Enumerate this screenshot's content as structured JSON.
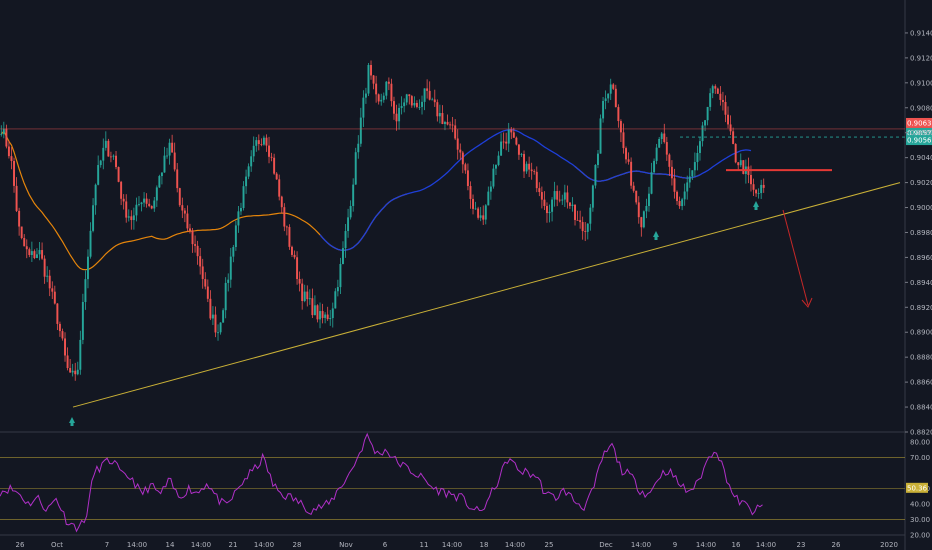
{
  "chart_data": [
    {
      "type": "candlestick",
      "ylim": [
        0.882,
        0.916
      ],
      "y_ticks": [
        "0.91400",
        "0.91200",
        "0.91000",
        "0.90800",
        "0.90600",
        "0.90400",
        "0.90200",
        "0.90000",
        "0.89800",
        "0.89600",
        "0.89400",
        "0.89200",
        "0.89000",
        "0.88800",
        "0.88600",
        "0.88400",
        "0.88200"
      ],
      "x_ticks": [
        "26",
        "Oct",
        "7",
        "14:00",
        "14",
        "14:00",
        "21",
        "14:00",
        "28",
        "Nov",
        "6",
        "11",
        "14:00",
        "18",
        "14:00",
        "25",
        "Dec",
        "14:00",
        "9",
        "14:00",
        "16",
        "14:00",
        "23",
        "26",
        "2020"
      ],
      "colors": {
        "up": "#26a69a",
        "down": "#ef5350",
        "ma_orange": "#e5850b",
        "ma_blue": "#1e3fd9",
        "trendline": "#c9b037",
        "resistance": "#e53935",
        "rsi": "#b030c8",
        "arrow": "#c62828"
      },
      "price_badges": [
        "0.90630",
        "0.90570",
        "0.90565"
      ],
      "annotations": {
        "trendline_from": [
          0,
          0.884
        ],
        "trendline_to": [
          170,
          0.902
        ],
        "resistance_level": 0.903,
        "support_dashed": 0.90565,
        "current_price_line": 0.9063,
        "bounce_arrows": [
          "up",
          "up",
          "up"
        ],
        "forecast_arrow": "down"
      },
      "candles_anchor_closes": [
        0.9065,
        0.904,
        0.8975,
        0.896,
        0.8965,
        0.894,
        0.891,
        0.887,
        0.886,
        0.895,
        0.902,
        0.905,
        0.904,
        0.9,
        0.899,
        0.901,
        0.9,
        0.903,
        0.905,
        0.9,
        0.898,
        0.896,
        0.892,
        0.89,
        0.894,
        0.899,
        0.902,
        0.905,
        0.906,
        0.903,
        0.899,
        0.896,
        0.893,
        0.892,
        0.891,
        0.8915,
        0.895,
        0.9,
        0.906,
        0.911,
        0.908,
        0.91,
        0.907,
        0.909,
        0.908,
        0.909,
        0.908,
        0.907,
        0.906,
        0.904,
        0.9,
        0.899,
        0.902,
        0.905,
        0.906,
        0.904,
        0.903,
        0.902,
        0.9,
        0.901,
        0.901,
        0.899,
        0.898,
        0.902,
        0.909,
        0.91,
        0.905,
        0.902,
        0.899,
        0.902,
        0.906,
        0.903,
        0.9,
        0.902,
        0.904,
        0.908,
        0.91,
        0.907,
        0.904,
        0.903,
        0.901,
        0.9015
      ]
    },
    {
      "type": "line",
      "indicator": "RSI",
      "ylim": [
        20,
        85
      ],
      "y_ticks": [
        "80.00",
        "70.00",
        "50.00",
        "40.00",
        "30.00",
        "20.00"
      ],
      "levels": [
        70,
        50,
        30
      ],
      "badge": "50.36",
      "values": [
        48,
        50,
        47,
        40,
        44,
        36,
        44,
        30,
        25,
        28,
        60,
        66,
        68,
        58,
        57,
        46,
        52,
        46,
        55,
        44,
        50,
        47,
        54,
        44,
        38,
        47,
        56,
        62,
        70,
        52,
        46,
        44,
        40,
        36,
        38,
        40,
        50,
        58,
        70,
        84,
        72,
        75,
        68,
        64,
        60,
        56,
        50,
        48,
        46,
        44,
        38,
        34,
        44,
        56,
        70,
        62,
        60,
        58,
        46,
        44,
        49,
        42,
        38,
        48,
        70,
        78,
        62,
        58,
        49,
        46,
        58,
        62,
        54,
        48,
        52,
        66,
        77,
        60,
        44,
        40,
        35,
        38
      ]
    }
  ]
}
